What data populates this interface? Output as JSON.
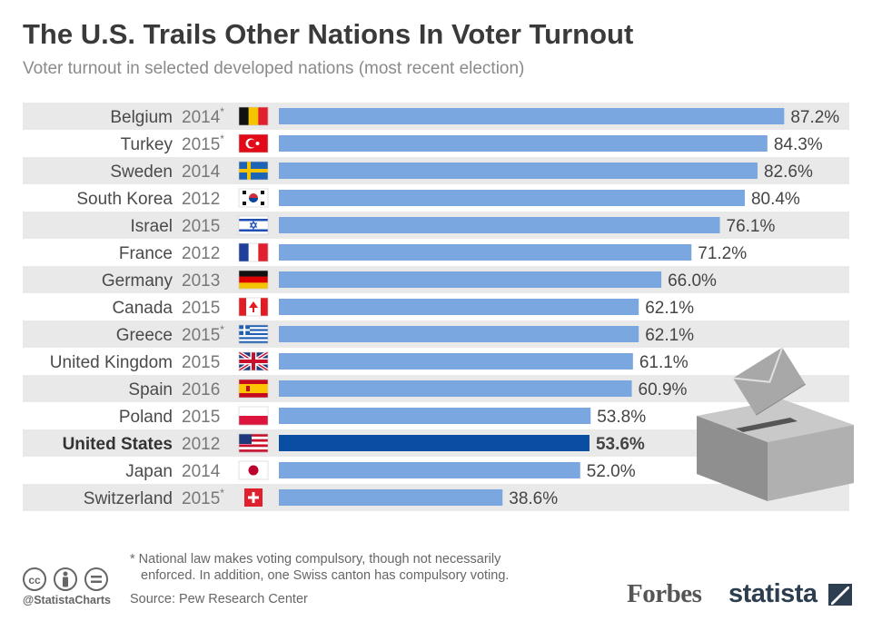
{
  "header": {
    "title": "The U.S. Trails Other Nations In Voter Turnout",
    "subtitle": "Voter turnout in selected developed nations (most recent election)"
  },
  "chart_data": {
    "type": "bar",
    "orientation": "horizontal",
    "categories": [
      "Belgium",
      "Turkey",
      "Sweden",
      "South Korea",
      "Israel",
      "France",
      "Germany",
      "Canada",
      "Greece",
      "United Kingdom",
      "Spain",
      "Poland",
      "United States",
      "Japan",
      "Switzerland"
    ],
    "years": [
      "2014",
      "2015",
      "2014",
      "2012",
      "2015",
      "2012",
      "2013",
      "2015",
      "2015",
      "2015",
      "2016",
      "2015",
      "2012",
      "2014",
      "2015"
    ],
    "compulsory": [
      true,
      true,
      false,
      false,
      false,
      false,
      false,
      false,
      true,
      false,
      false,
      false,
      false,
      false,
      true
    ],
    "values": [
      87.2,
      84.3,
      82.6,
      80.4,
      76.1,
      71.2,
      66.0,
      62.1,
      62.1,
      61.1,
      60.9,
      53.8,
      53.6,
      52.0,
      38.6
    ],
    "value_labels": [
      "87.2%",
      "84.3%",
      "82.6%",
      "80.4%",
      "76.1%",
      "71.2%",
      "66.0%",
      "62.1%",
      "62.1%",
      "61.1%",
      "60.9%",
      "53.8%",
      "53.6%",
      "52.0%",
      "38.6%"
    ],
    "flag_icons": [
      "belgium-flag-icon",
      "turkey-flag-icon",
      "sweden-flag-icon",
      "south-korea-flag-icon",
      "israel-flag-icon",
      "france-flag-icon",
      "germany-flag-icon",
      "canada-flag-icon",
      "greece-flag-icon",
      "united-kingdom-flag-icon",
      "spain-flag-icon",
      "poland-flag-icon",
      "united-states-flag-icon",
      "japan-flag-icon",
      "switzerland-flag-icon"
    ],
    "highlight": "United States",
    "asterisk": "*",
    "colors": {
      "bar": "#7ba7e0",
      "highlight_bar": "#0a4ea3",
      "row_stripe": "#e9e9e9"
    },
    "xlim": [
      0,
      100
    ]
  },
  "footer": {
    "footnote_line1": "* National law makes voting compulsory, though not necessarily",
    "footnote_line2": "enforced. In addition, one Swiss canton has compulsory voting.",
    "source": "Source: Pew Research Center",
    "handle": "@StatistaCharts",
    "forbes_logo": "Forbes",
    "statista_logo": "statista",
    "license_icons": [
      "cc-icon",
      "by-icon",
      "nd-icon"
    ]
  }
}
